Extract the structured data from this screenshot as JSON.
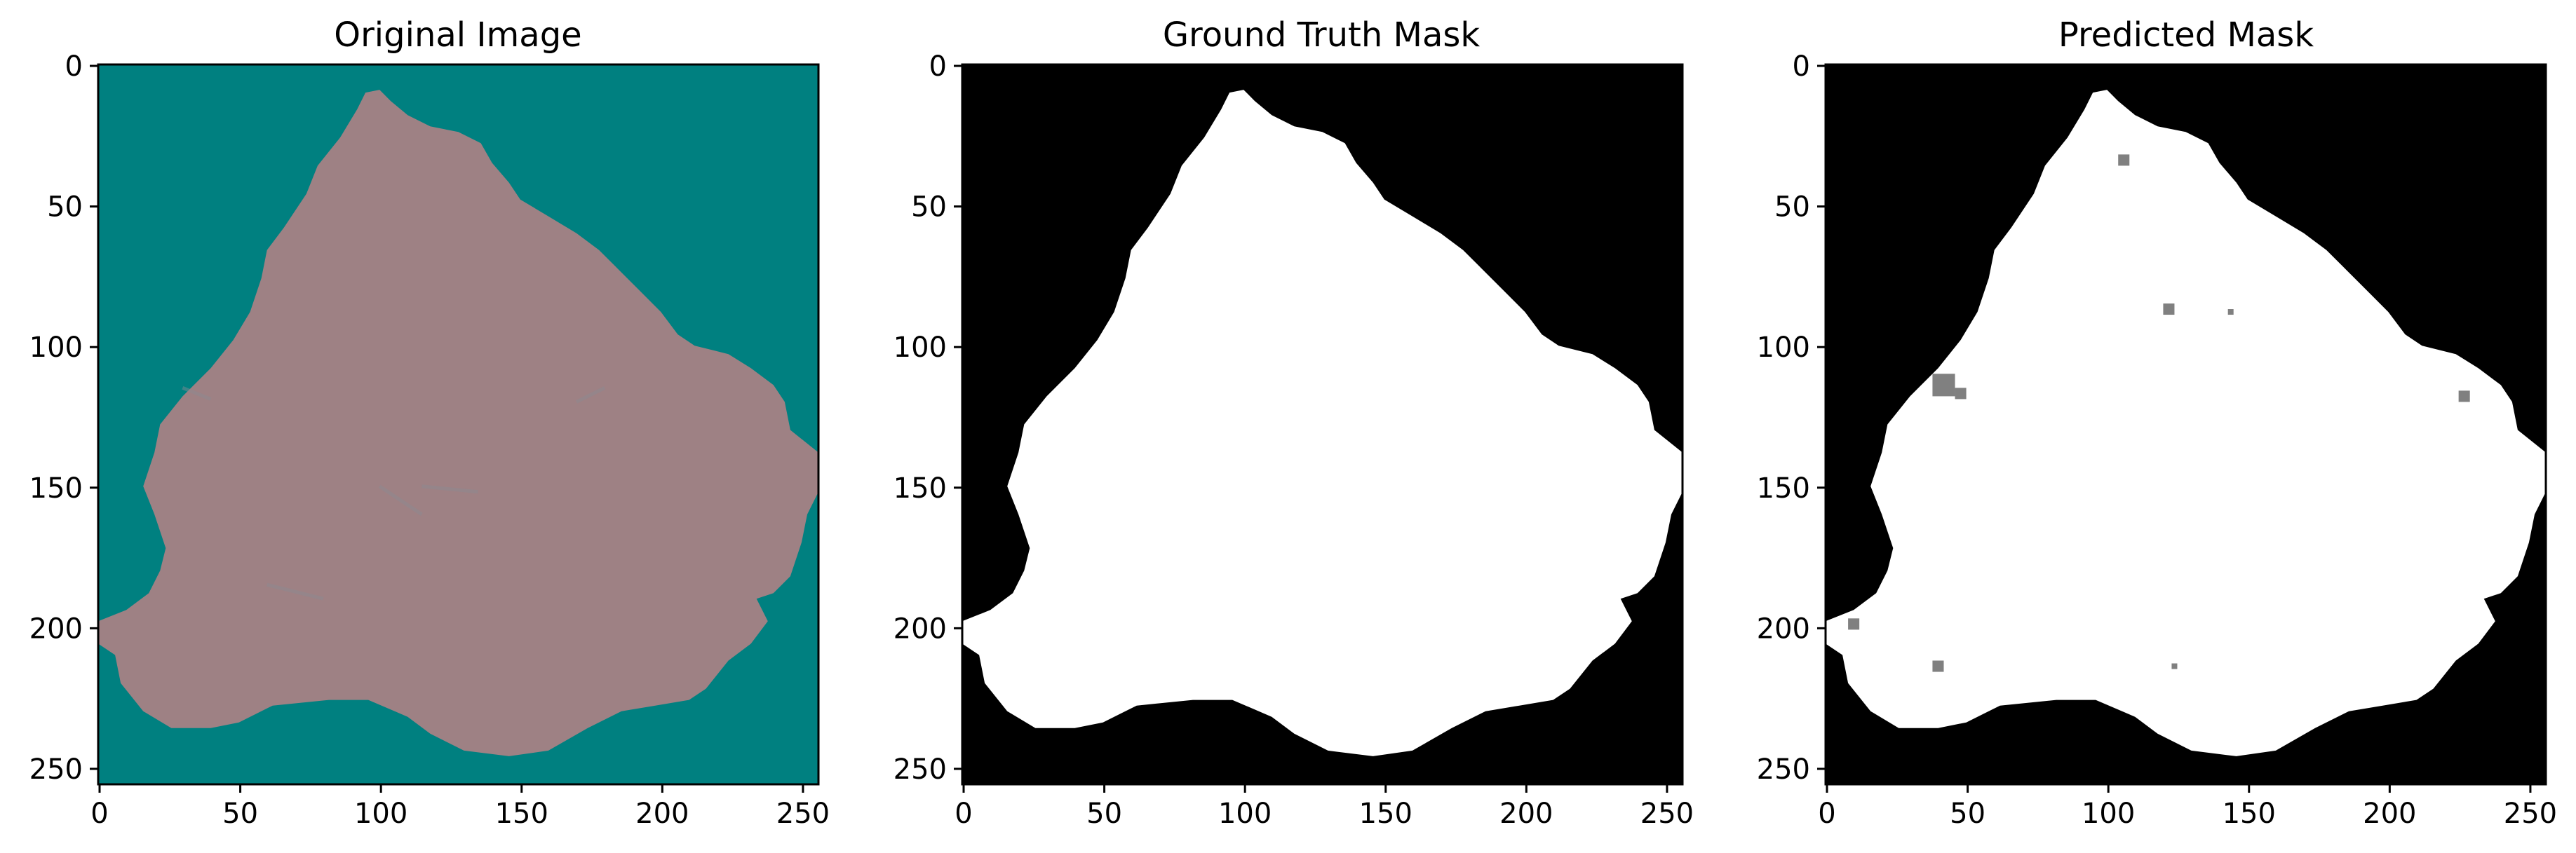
{
  "figure": {
    "background": "#ffffff",
    "axis_color": "#000000"
  },
  "chart_data": [
    {
      "type": "image",
      "title": "Original Image",
      "xlim": [
        0,
        255
      ],
      "ylim": [
        255,
        0
      ],
      "xticks": [
        0,
        50,
        100,
        150,
        200,
        250
      ],
      "yticks": [
        0,
        50,
        100,
        150,
        200,
        250
      ],
      "background_color": "#008080",
      "foreground_color": "#9e8184",
      "texture_color": "#8a8a92",
      "region_outline": [
        [
          95,
          10
        ],
        [
          100,
          9
        ],
        [
          104,
          13
        ],
        [
          110,
          18
        ],
        [
          118,
          22
        ],
        [
          128,
          24
        ],
        [
          136,
          28
        ],
        [
          140,
          35
        ],
        [
          146,
          42
        ],
        [
          150,
          48
        ],
        [
          160,
          54
        ],
        [
          170,
          60
        ],
        [
          178,
          66
        ],
        [
          184,
          72
        ],
        [
          192,
          80
        ],
        [
          200,
          88
        ],
        [
          206,
          96
        ],
        [
          212,
          100
        ],
        [
          224,
          103
        ],
        [
          232,
          108
        ],
        [
          240,
          114
        ],
        [
          244,
          120
        ],
        [
          246,
          130
        ],
        [
          256,
          138
        ],
        [
          256,
          152
        ],
        [
          252,
          160
        ],
        [
          250,
          170
        ],
        [
          246,
          182
        ],
        [
          240,
          188
        ],
        [
          234,
          190
        ],
        [
          238,
          198
        ],
        [
          232,
          206
        ],
        [
          224,
          212
        ],
        [
          216,
          222
        ],
        [
          210,
          226
        ],
        [
          198,
          228
        ],
        [
          186,
          230
        ],
        [
          174,
          236
        ],
        [
          160,
          244
        ],
        [
          146,
          246
        ],
        [
          130,
          244
        ],
        [
          118,
          238
        ],
        [
          110,
          232
        ],
        [
          96,
          226
        ],
        [
          82,
          226
        ],
        [
          62,
          228
        ],
        [
          50,
          234
        ],
        [
          40,
          236
        ],
        [
          26,
          236
        ],
        [
          16,
          230
        ],
        [
          8,
          220
        ],
        [
          6,
          210
        ],
        [
          0,
          206
        ],
        [
          0,
          198
        ],
        [
          10,
          194
        ],
        [
          18,
          188
        ],
        [
          22,
          180
        ],
        [
          24,
          172
        ],
        [
          20,
          160
        ],
        [
          16,
          150
        ],
        [
          20,
          138
        ],
        [
          22,
          128
        ],
        [
          30,
          118
        ],
        [
          40,
          108
        ],
        [
          48,
          98
        ],
        [
          54,
          88
        ],
        [
          58,
          76
        ],
        [
          60,
          66
        ],
        [
          66,
          58
        ],
        [
          74,
          46
        ],
        [
          78,
          36
        ],
        [
          86,
          26
        ],
        [
          92,
          16
        ]
      ]
    },
    {
      "type": "image",
      "title": "Ground Truth Mask",
      "xlim": [
        0,
        255
      ],
      "ylim": [
        255,
        0
      ],
      "xticks": [
        0,
        50,
        100,
        150,
        200,
        250
      ],
      "yticks": [
        0,
        50,
        100,
        150,
        200,
        250
      ],
      "background_color": "#000000",
      "foreground_color": "#ffffff",
      "region_outline": [
        [
          95,
          10
        ],
        [
          100,
          9
        ],
        [
          104,
          13
        ],
        [
          110,
          18
        ],
        [
          118,
          22
        ],
        [
          128,
          24
        ],
        [
          136,
          28
        ],
        [
          140,
          35
        ],
        [
          146,
          42
        ],
        [
          150,
          48
        ],
        [
          160,
          54
        ],
        [
          170,
          60
        ],
        [
          178,
          66
        ],
        [
          184,
          72
        ],
        [
          192,
          80
        ],
        [
          200,
          88
        ],
        [
          206,
          96
        ],
        [
          212,
          100
        ],
        [
          224,
          103
        ],
        [
          232,
          108
        ],
        [
          240,
          114
        ],
        [
          244,
          120
        ],
        [
          246,
          130
        ],
        [
          256,
          138
        ],
        [
          256,
          152
        ],
        [
          252,
          160
        ],
        [
          250,
          170
        ],
        [
          246,
          182
        ],
        [
          240,
          188
        ],
        [
          234,
          190
        ],
        [
          238,
          198
        ],
        [
          232,
          206
        ],
        [
          224,
          212
        ],
        [
          216,
          222
        ],
        [
          210,
          226
        ],
        [
          198,
          228
        ],
        [
          186,
          230
        ],
        [
          174,
          236
        ],
        [
          160,
          244
        ],
        [
          146,
          246
        ],
        [
          130,
          244
        ],
        [
          118,
          238
        ],
        [
          110,
          232
        ],
        [
          96,
          226
        ],
        [
          82,
          226
        ],
        [
          62,
          228
        ],
        [
          50,
          234
        ],
        [
          40,
          236
        ],
        [
          26,
          236
        ],
        [
          16,
          230
        ],
        [
          8,
          220
        ],
        [
          6,
          210
        ],
        [
          0,
          206
        ],
        [
          0,
          198
        ],
        [
          10,
          194
        ],
        [
          18,
          188
        ],
        [
          22,
          180
        ],
        [
          24,
          172
        ],
        [
          20,
          160
        ],
        [
          16,
          150
        ],
        [
          20,
          138
        ],
        [
          22,
          128
        ],
        [
          30,
          118
        ],
        [
          40,
          108
        ],
        [
          48,
          98
        ],
        [
          54,
          88
        ],
        [
          58,
          76
        ],
        [
          60,
          66
        ],
        [
          66,
          58
        ],
        [
          74,
          46
        ],
        [
          78,
          36
        ],
        [
          86,
          26
        ],
        [
          92,
          16
        ]
      ]
    },
    {
      "type": "image",
      "title": "Predicted Mask",
      "xlim": [
        0,
        255
      ],
      "ylim": [
        255,
        0
      ],
      "xticks": [
        0,
        50,
        100,
        150,
        200,
        250
      ],
      "yticks": [
        0,
        50,
        100,
        150,
        200,
        250
      ],
      "background_color": "#000000",
      "foreground_color": "#ffffff",
      "uncertain_color": "#808080",
      "region_outline": [
        [
          95,
          10
        ],
        [
          100,
          9
        ],
        [
          104,
          13
        ],
        [
          110,
          18
        ],
        [
          118,
          22
        ],
        [
          128,
          24
        ],
        [
          136,
          28
        ],
        [
          140,
          35
        ],
        [
          146,
          42
        ],
        [
          150,
          48
        ],
        [
          160,
          54
        ],
        [
          170,
          60
        ],
        [
          178,
          66
        ],
        [
          184,
          72
        ],
        [
          192,
          80
        ],
        [
          200,
          88
        ],
        [
          206,
          96
        ],
        [
          212,
          100
        ],
        [
          224,
          103
        ],
        [
          232,
          108
        ],
        [
          240,
          114
        ],
        [
          244,
          120
        ],
        [
          246,
          130
        ],
        [
          256,
          138
        ],
        [
          256,
          152
        ],
        [
          252,
          160
        ],
        [
          250,
          170
        ],
        [
          246,
          182
        ],
        [
          240,
          188
        ],
        [
          234,
          190
        ],
        [
          238,
          198
        ],
        [
          232,
          206
        ],
        [
          224,
          212
        ],
        [
          216,
          222
        ],
        [
          210,
          226
        ],
        [
          198,
          228
        ],
        [
          186,
          230
        ],
        [
          174,
          236
        ],
        [
          160,
          244
        ],
        [
          146,
          246
        ],
        [
          130,
          244
        ],
        [
          118,
          238
        ],
        [
          110,
          232
        ],
        [
          96,
          226
        ],
        [
          82,
          226
        ],
        [
          62,
          228
        ],
        [
          50,
          234
        ],
        [
          40,
          236
        ],
        [
          26,
          236
        ],
        [
          16,
          230
        ],
        [
          8,
          220
        ],
        [
          6,
          210
        ],
        [
          0,
          206
        ],
        [
          0,
          198
        ],
        [
          10,
          194
        ],
        [
          18,
          188
        ],
        [
          22,
          180
        ],
        [
          24,
          172
        ],
        [
          20,
          160
        ],
        [
          16,
          150
        ],
        [
          20,
          138
        ],
        [
          22,
          128
        ],
        [
          30,
          118
        ],
        [
          40,
          108
        ],
        [
          48,
          98
        ],
        [
          54,
          88
        ],
        [
          58,
          76
        ],
        [
          60,
          66
        ],
        [
          66,
          58
        ],
        [
          74,
          46
        ],
        [
          78,
          36
        ],
        [
          86,
          26
        ],
        [
          92,
          16
        ]
      ],
      "gray_spots": [
        [
          106,
          34,
          2
        ],
        [
          122,
          87,
          2
        ],
        [
          42,
          114,
          4
        ],
        [
          48,
          117,
          2
        ],
        [
          227,
          118,
          2
        ],
        [
          40,
          214,
          2
        ],
        [
          10,
          199,
          2
        ],
        [
          124,
          214,
          1
        ],
        [
          144,
          88,
          1
        ]
      ]
    }
  ]
}
